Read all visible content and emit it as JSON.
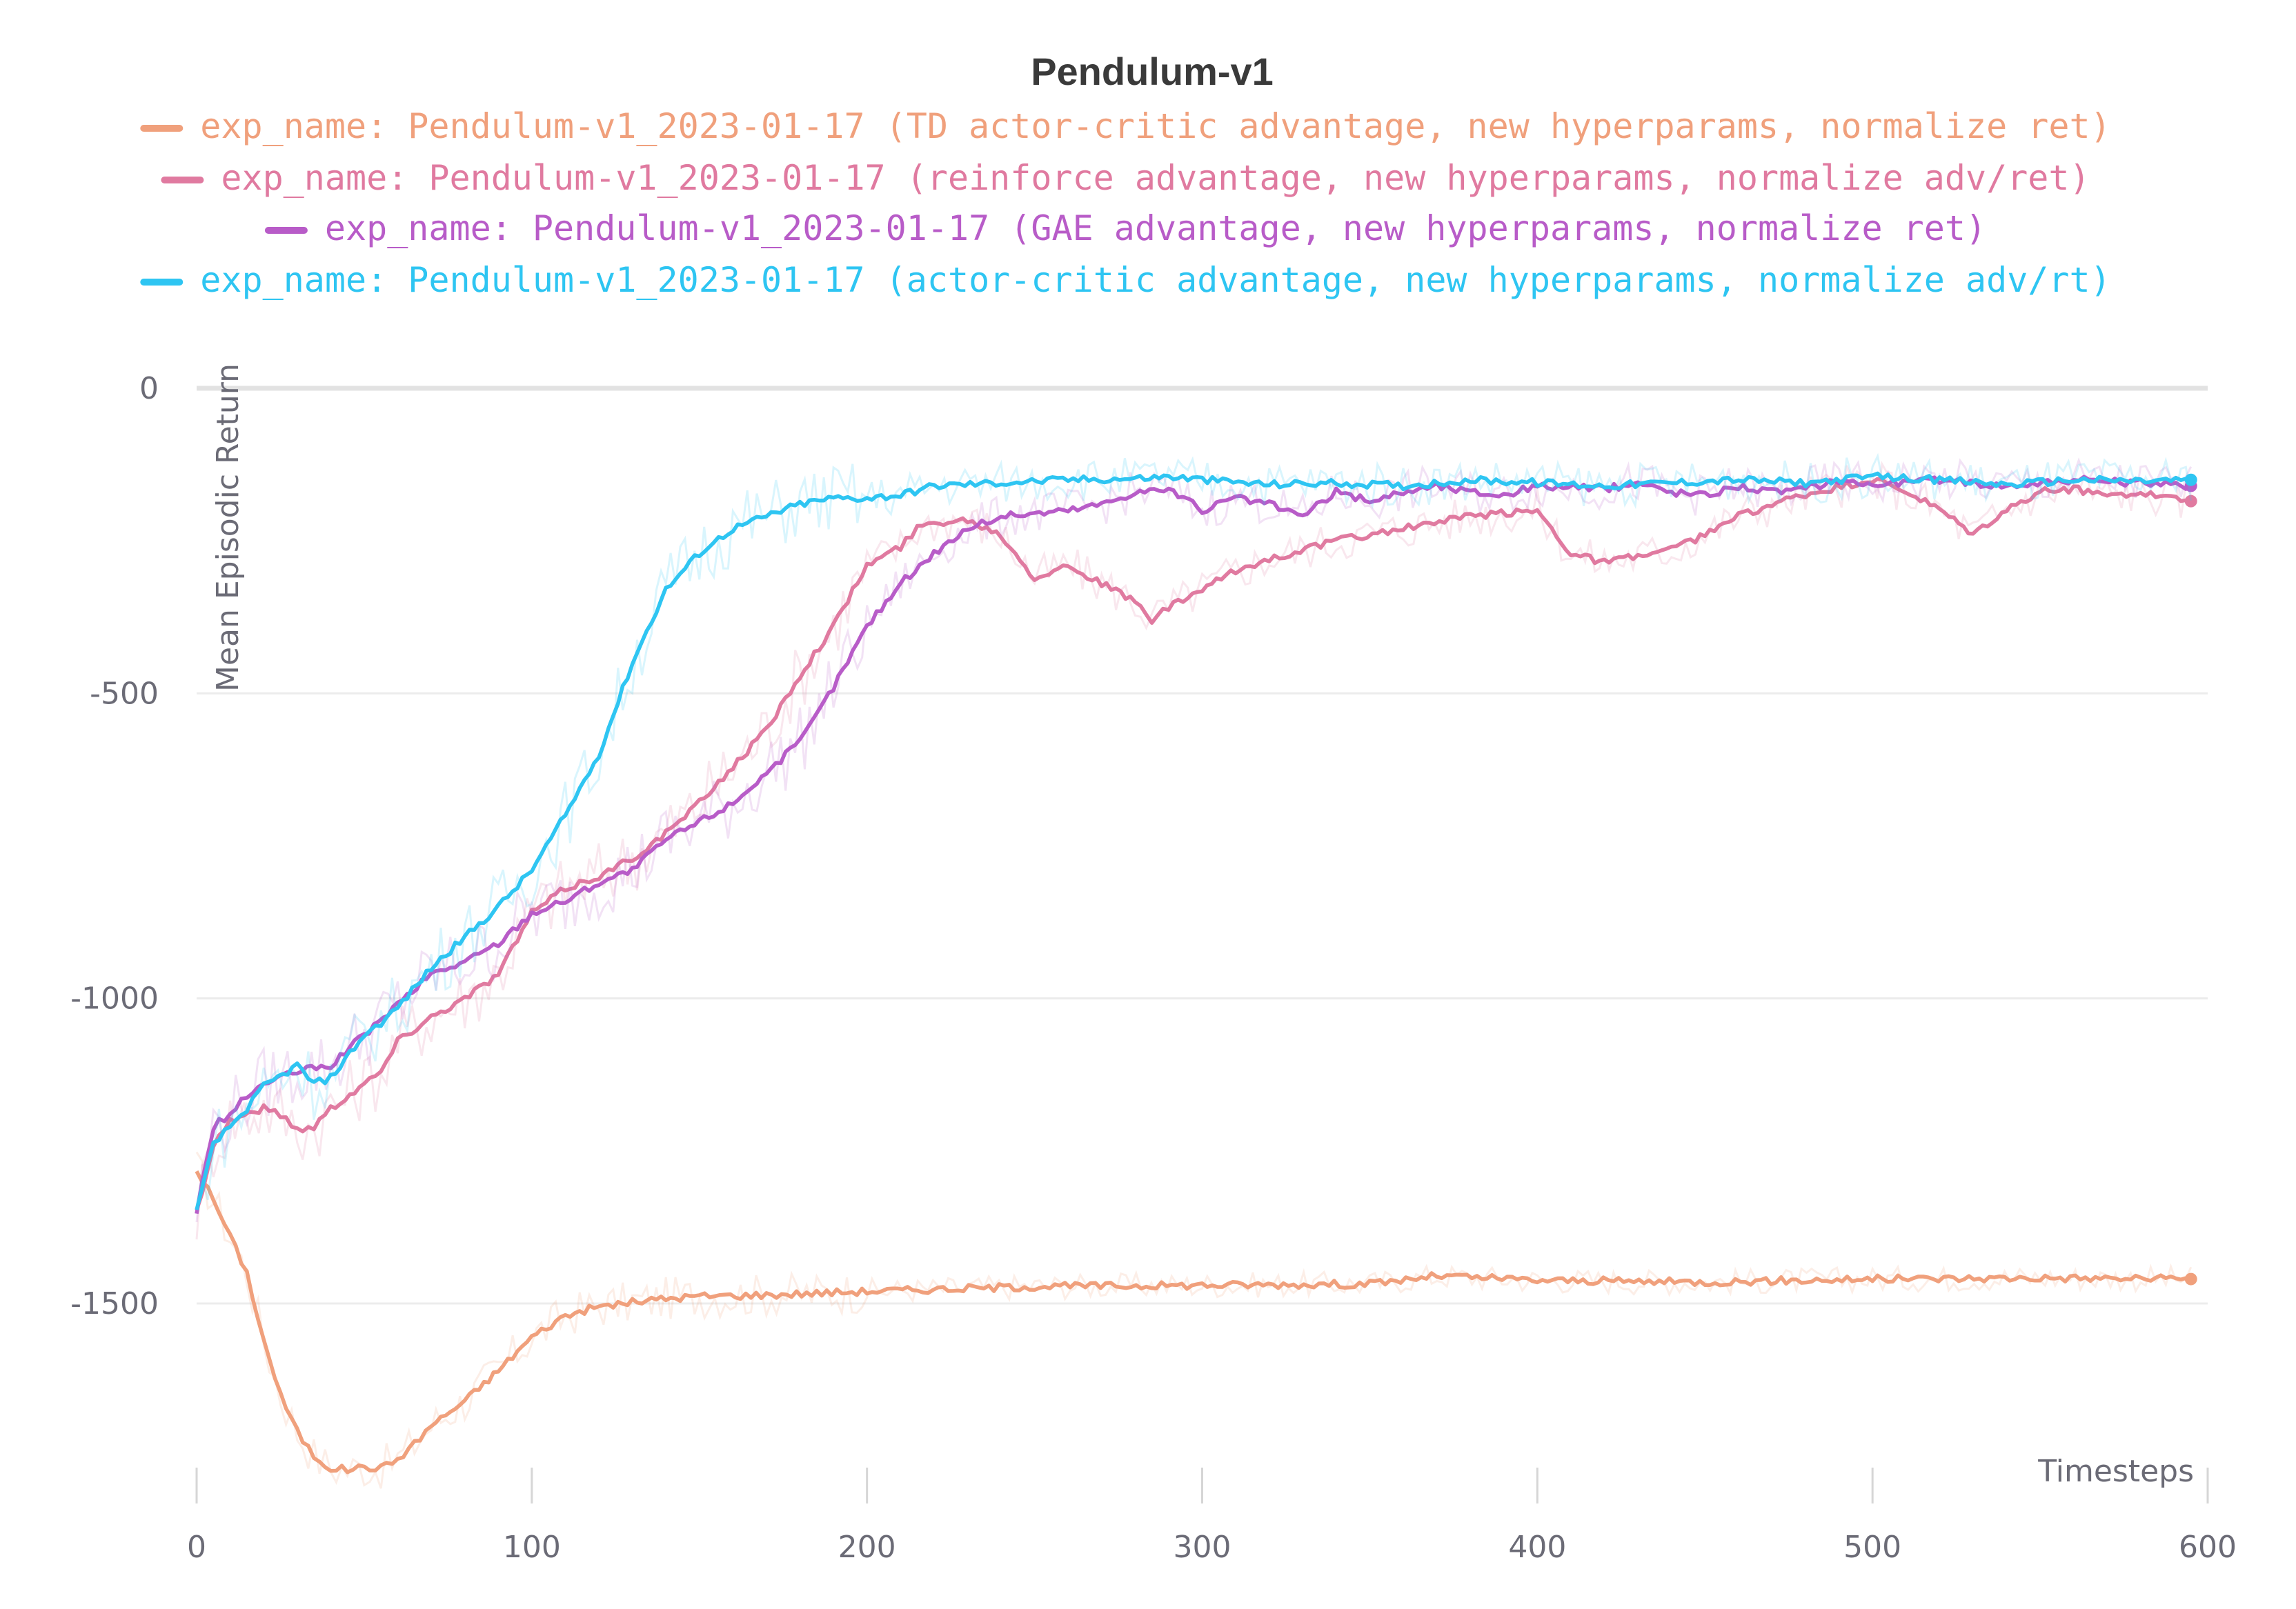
{
  "chart_data": {
    "type": "line",
    "title": "Pendulum-v1",
    "xlabel": "Timesteps",
    "ylabel": "Mean Episodic Return",
    "xlim": [
      0,
      600
    ],
    "ylim": [
      -1820,
      0
    ],
    "x_ticks": [
      0,
      100,
      200,
      300,
      400,
      500,
      600
    ],
    "x_tick_labels": [
      "0",
      "100",
      "200",
      "300",
      "400",
      "500",
      "600"
    ],
    "y_ticks": [
      0,
      -500,
      -1000,
      -1500
    ],
    "y_tick_labels": [
      "0",
      "-500",
      "-1000",
      "-1500"
    ],
    "grid": "horizontal",
    "legend_position": "top-center",
    "series": [
      {
        "name": "exp_name: Pendulum-v1_2023-01-17 (TD actor-critic advantage, new hyperparams, normalize ret)",
        "color": "#f0a07c",
        "points": [
          [
            0,
            -1280
          ],
          [
            5,
            -1330
          ],
          [
            10,
            -1390
          ],
          [
            15,
            -1450
          ],
          [
            20,
            -1560
          ],
          [
            25,
            -1650
          ],
          [
            30,
            -1710
          ],
          [
            35,
            -1750
          ],
          [
            40,
            -1770
          ],
          [
            45,
            -1772
          ],
          [
            50,
            -1768
          ],
          [
            55,
            -1770
          ],
          [
            60,
            -1755
          ],
          [
            65,
            -1730
          ],
          [
            70,
            -1700
          ],
          [
            80,
            -1660
          ],
          [
            90,
            -1610
          ],
          [
            100,
            -1555
          ],
          [
            110,
            -1520
          ],
          [
            120,
            -1505
          ],
          [
            130,
            -1498
          ],
          [
            140,
            -1492
          ],
          [
            150,
            -1488
          ],
          [
            170,
            -1486
          ],
          [
            200,
            -1480
          ],
          [
            250,
            -1472
          ],
          [
            300,
            -1470
          ],
          [
            350,
            -1468
          ],
          [
            370,
            -1455
          ],
          [
            400,
            -1462
          ],
          [
            450,
            -1465
          ],
          [
            500,
            -1460
          ],
          [
            550,
            -1458
          ],
          [
            595,
            -1460
          ]
        ]
      },
      {
        "name": "exp_name: Pendulum-v1_2023-01-17 (reinforce advantage, new hyperparams, normalize adv/ret)",
        "color": "#e07aa0",
        "points": [
          [
            0,
            -1350
          ],
          [
            5,
            -1240
          ],
          [
            10,
            -1200
          ],
          [
            20,
            -1180
          ],
          [
            25,
            -1190
          ],
          [
            30,
            -1215
          ],
          [
            35,
            -1210
          ],
          [
            40,
            -1180
          ],
          [
            50,
            -1140
          ],
          [
            55,
            -1120
          ],
          [
            60,
            -1070
          ],
          [
            70,
            -1030
          ],
          [
            80,
            -1000
          ],
          [
            90,
            -960
          ],
          [
            100,
            -860
          ],
          [
            110,
            -820
          ],
          [
            120,
            -800
          ],
          [
            130,
            -770
          ],
          [
            140,
            -730
          ],
          [
            150,
            -680
          ],
          [
            160,
            -620
          ],
          [
            170,
            -560
          ],
          [
            180,
            -470
          ],
          [
            190,
            -390
          ],
          [
            200,
            -290
          ],
          [
            210,
            -260
          ],
          [
            215,
            -230
          ],
          [
            220,
            -220
          ],
          [
            230,
            -215
          ],
          [
            240,
            -240
          ],
          [
            250,
            -310
          ],
          [
            260,
            -290
          ],
          [
            270,
            -320
          ],
          [
            280,
            -350
          ],
          [
            285,
            -380
          ],
          [
            290,
            -360
          ],
          [
            300,
            -330
          ],
          [
            310,
            -300
          ],
          [
            320,
            -280
          ],
          [
            340,
            -250
          ],
          [
            360,
            -230
          ],
          [
            380,
            -210
          ],
          [
            400,
            -200
          ],
          [
            410,
            -270
          ],
          [
            420,
            -285
          ],
          [
            430,
            -275
          ],
          [
            440,
            -265
          ],
          [
            450,
            -240
          ],
          [
            460,
            -210
          ],
          [
            470,
            -190
          ],
          [
            480,
            -175
          ],
          [
            500,
            -150
          ],
          [
            510,
            -170
          ],
          [
            520,
            -200
          ],
          [
            530,
            -240
          ],
          [
            540,
            -200
          ],
          [
            550,
            -170
          ],
          [
            560,
            -165
          ],
          [
            570,
            -175
          ],
          [
            580,
            -170
          ],
          [
            595,
            -185
          ]
        ]
      },
      {
        "name": "exp_name: Pendulum-v1_2023-01-17 (GAE advantage, new hyperparams, normalize ret)",
        "color": "#b85cc8",
        "points": [
          [
            0,
            -1350
          ],
          [
            5,
            -1210
          ],
          [
            10,
            -1190
          ],
          [
            15,
            -1160
          ],
          [
            20,
            -1140
          ],
          [
            30,
            -1120
          ],
          [
            40,
            -1110
          ],
          [
            50,
            -1060
          ],
          [
            60,
            -1010
          ],
          [
            70,
            -960
          ],
          [
            80,
            -940
          ],
          [
            90,
            -910
          ],
          [
            100,
            -860
          ],
          [
            110,
            -840
          ],
          [
            120,
            -810
          ],
          [
            130,
            -790
          ],
          [
            140,
            -740
          ],
          [
            150,
            -710
          ],
          [
            160,
            -680
          ],
          [
            170,
            -630
          ],
          [
            180,
            -580
          ],
          [
            190,
            -490
          ],
          [
            200,
            -390
          ],
          [
            210,
            -320
          ],
          [
            220,
            -270
          ],
          [
            230,
            -230
          ],
          [
            240,
            -210
          ],
          [
            250,
            -205
          ],
          [
            260,
            -200
          ],
          [
            270,
            -190
          ],
          [
            280,
            -170
          ],
          [
            290,
            -165
          ],
          [
            300,
            -200
          ],
          [
            310,
            -180
          ],
          [
            320,
            -190
          ],
          [
            330,
            -210
          ],
          [
            340,
            -170
          ],
          [
            350,
            -185
          ],
          [
            360,
            -170
          ],
          [
            370,
            -160
          ],
          [
            380,
            -170
          ],
          [
            390,
            -175
          ],
          [
            400,
            -160
          ],
          [
            420,
            -165
          ],
          [
            430,
            -155
          ],
          [
            440,
            -170
          ],
          [
            450,
            -175
          ],
          [
            460,
            -160
          ],
          [
            470,
            -170
          ],
          [
            480,
            -165
          ],
          [
            490,
            -150
          ],
          [
            500,
            -158
          ],
          [
            520,
            -150
          ],
          [
            540,
            -160
          ],
          [
            560,
            -150
          ],
          [
            580,
            -155
          ],
          [
            595,
            -160
          ]
        ]
      },
      {
        "name": "exp_name: Pendulum-v1_2023-01-17 (actor-critic advantage, new hyperparams, normalize adv/rt)",
        "color": "#2ec5f2",
        "points": [
          [
            0,
            -1350
          ],
          [
            5,
            -1240
          ],
          [
            10,
            -1210
          ],
          [
            15,
            -1180
          ],
          [
            20,
            -1145
          ],
          [
            30,
            -1110
          ],
          [
            35,
            -1140
          ],
          [
            40,
            -1130
          ],
          [
            50,
            -1060
          ],
          [
            55,
            -1040
          ],
          [
            60,
            -1015
          ],
          [
            70,
            -950
          ],
          [
            80,
            -900
          ],
          [
            90,
            -850
          ],
          [
            100,
            -790
          ],
          [
            110,
            -700
          ],
          [
            120,
            -600
          ],
          [
            130,
            -450
          ],
          [
            140,
            -330
          ],
          [
            150,
            -270
          ],
          [
            160,
            -230
          ],
          [
            170,
            -210
          ],
          [
            180,
            -190
          ],
          [
            190,
            -180
          ],
          [
            200,
            -180
          ],
          [
            210,
            -175
          ],
          [
            220,
            -160
          ],
          [
            240,
            -155
          ],
          [
            260,
            -150
          ],
          [
            280,
            -148
          ],
          [
            290,
            -145
          ],
          [
            300,
            -150
          ],
          [
            320,
            -158
          ],
          [
            340,
            -155
          ],
          [
            360,
            -160
          ],
          [
            380,
            -150
          ],
          [
            400,
            -155
          ],
          [
            420,
            -160
          ],
          [
            440,
            -155
          ],
          [
            460,
            -150
          ],
          [
            480,
            -155
          ],
          [
            500,
            -145
          ],
          [
            520,
            -150
          ],
          [
            540,
            -158
          ],
          [
            560,
            -150
          ],
          [
            580,
            -152
          ],
          [
            595,
            -150
          ]
        ]
      }
    ]
  }
}
